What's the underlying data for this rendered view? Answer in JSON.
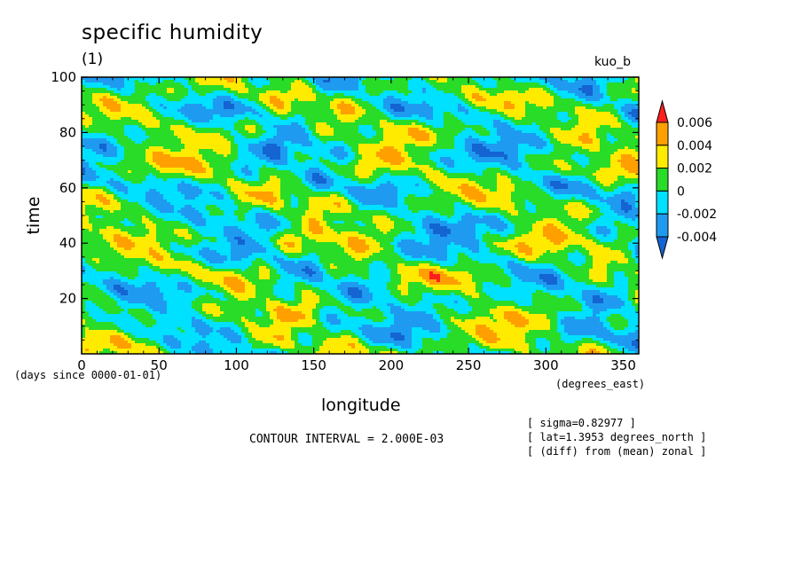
{
  "chart_data": {
    "type": "heatmap",
    "title": "specific humidity",
    "subtitle": "(1)",
    "run_label": "kuo_b",
    "xlabel": "longitude",
    "ylabel": "time",
    "x_units_label": "(degrees_east)",
    "y_origin_label": "(days since 0000-01-01)",
    "xlim": [
      0,
      360
    ],
    "ylim": [
      0,
      100
    ],
    "x_ticks": [
      0,
      50,
      100,
      150,
      200,
      250,
      300,
      350
    ],
    "y_ticks": [
      20,
      40,
      60,
      80,
      100
    ],
    "contour_interval": 0.002,
    "contour_interval_text": "CONTOUR INTERVAL = 2.000E-03",
    "info_lines": [
      "[ sigma=0.82977 ]",
      "[ lat=1.3953 degrees_north ]",
      "[ (diff) from (mean) zonal ]"
    ],
    "colorbar": {
      "levels": [
        -0.004,
        -0.002,
        0,
        0.002,
        0.004,
        0.006
      ],
      "labels": [
        "0.006",
        "0.004",
        "0.002",
        "0",
        "-0.002",
        "-0.004"
      ],
      "colors": [
        "#1464d2",
        "#1e9bf0",
        "#00e0ff",
        "#28dc28",
        "#ffeb00",
        "#ffa000",
        "#ff1e1e"
      ]
    }
  }
}
